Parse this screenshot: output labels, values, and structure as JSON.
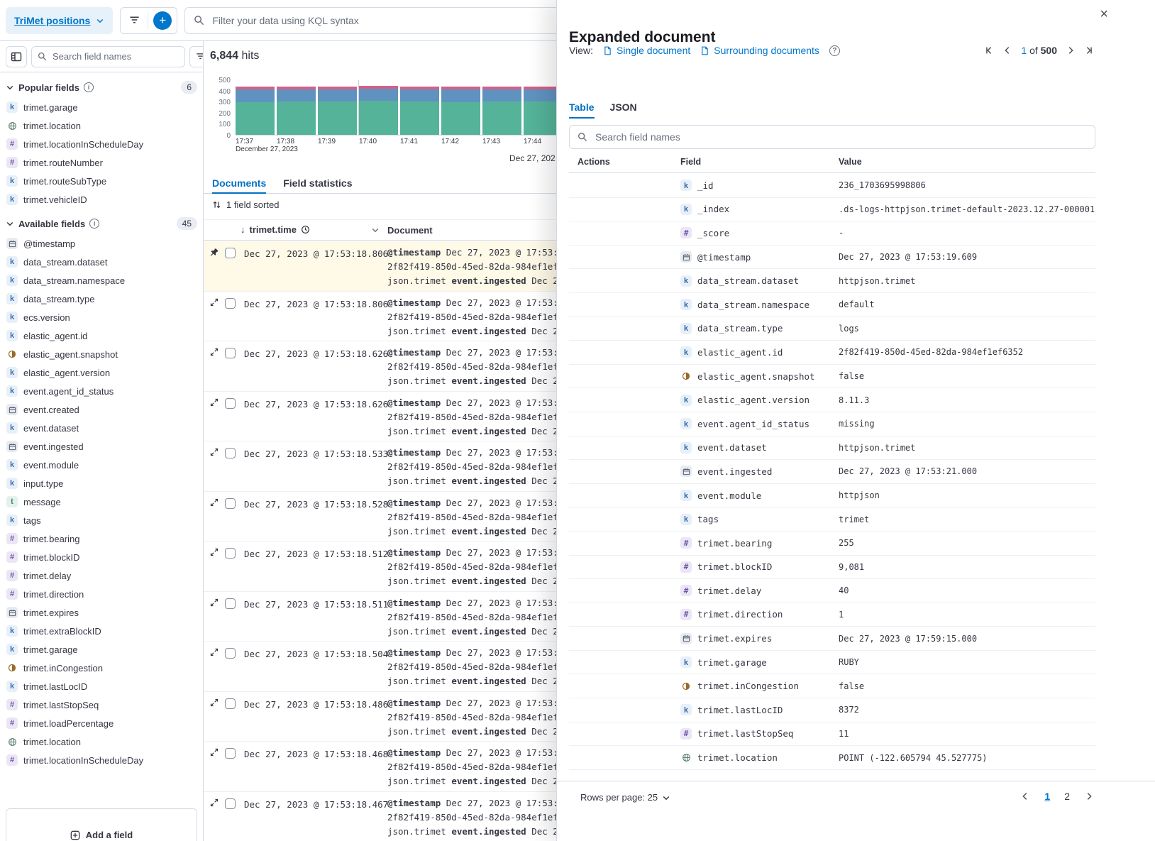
{
  "icons": {
    "close": "×",
    "plus": "+",
    "sort_desc_arrow": "↓",
    "question": "?",
    "info": "i"
  },
  "topbar": {
    "data_view": "TriMet positions",
    "kql_placeholder": "Filter your data using KQL syntax"
  },
  "sidebar": {
    "search_placeholder": "Search field names",
    "filter_count": "0",
    "add_field_label": "Add a field",
    "popular": {
      "label": "Popular fields",
      "count": "6",
      "items": [
        {
          "icon": "keyword",
          "name": "trimet.garage"
        },
        {
          "icon": "geo",
          "name": "trimet.location"
        },
        {
          "icon": "number",
          "name": "trimet.locationInScheduleDay"
        },
        {
          "icon": "number",
          "name": "trimet.routeNumber"
        },
        {
          "icon": "keyword",
          "name": "trimet.routeSubType"
        },
        {
          "icon": "keyword",
          "name": "trimet.vehicleID"
        }
      ]
    },
    "available": {
      "label": "Available fields",
      "count": "45",
      "items": [
        {
          "icon": "date",
          "name": "@timestamp"
        },
        {
          "icon": "keyword",
          "name": "data_stream.dataset"
        },
        {
          "icon": "keyword",
          "name": "data_stream.namespace"
        },
        {
          "icon": "keyword",
          "name": "data_stream.type"
        },
        {
          "icon": "keyword",
          "name": "ecs.version"
        },
        {
          "icon": "keyword",
          "name": "elastic_agent.id"
        },
        {
          "icon": "boolean",
          "name": "elastic_agent.snapshot"
        },
        {
          "icon": "keyword",
          "name": "elastic_agent.version"
        },
        {
          "icon": "keyword",
          "name": "event.agent_id_status"
        },
        {
          "icon": "date",
          "name": "event.created"
        },
        {
          "icon": "keyword",
          "name": "event.dataset"
        },
        {
          "icon": "date",
          "name": "event.ingested"
        },
        {
          "icon": "keyword",
          "name": "event.module"
        },
        {
          "icon": "keyword",
          "name": "input.type"
        },
        {
          "icon": "text",
          "name": "message"
        },
        {
          "icon": "keyword",
          "name": "tags"
        },
        {
          "icon": "number",
          "name": "trimet.bearing"
        },
        {
          "icon": "number",
          "name": "trimet.blockID"
        },
        {
          "icon": "number",
          "name": "trimet.delay"
        },
        {
          "icon": "number",
          "name": "trimet.direction"
        },
        {
          "icon": "date",
          "name": "trimet.expires"
        },
        {
          "icon": "keyword",
          "name": "trimet.extraBlockID"
        },
        {
          "icon": "keyword",
          "name": "trimet.garage"
        },
        {
          "icon": "boolean",
          "name": "trimet.inCongestion"
        },
        {
          "icon": "keyword",
          "name": "trimet.lastLocID"
        },
        {
          "icon": "number",
          "name": "trimet.lastStopSeq"
        },
        {
          "icon": "number",
          "name": "trimet.loadPercentage"
        },
        {
          "icon": "geo",
          "name": "trimet.location"
        },
        {
          "icon": "number",
          "name": "trimet.locationInScheduleDay"
        }
      ]
    }
  },
  "main": {
    "hits_count": "6,844",
    "hits_label": "hits",
    "tabs": [
      {
        "label": "Documents"
      },
      {
        "label": "Field statistics"
      }
    ],
    "sorted_label": "1 field sorted",
    "range_label": "Dec 27, 202",
    "table": {
      "time_column": "trimet.time",
      "doc_column": "Document",
      "preview": {
        "lines": [
          [
            {
              "b": "@timestamp"
            },
            {
              "t": " Dec 27, 2023 @ 17:53:19"
            }
          ],
          [
            {
              "t": "2f82f419-850d-45ed-82da-984ef1ef6"
            }
          ],
          [
            {
              "t": "json.trimet "
            },
            {
              "b": "event.ingested"
            },
            {
              "t": " Dec 27,"
            }
          ]
        ]
      },
      "rows": [
        "Dec 27, 2023 @ 17:53:18.806",
        "Dec 27, 2023 @ 17:53:18.806",
        "Dec 27, 2023 @ 17:53:18.626",
        "Dec 27, 2023 @ 17:53:18.626",
        "Dec 27, 2023 @ 17:53:18.533",
        "Dec 27, 2023 @ 17:53:18.528",
        "Dec 27, 2023 @ 17:53:18.512",
        "Dec 27, 2023 @ 17:53:18.511",
        "Dec 27, 2023 @ 17:53:18.504",
        "Dec 27, 2023 @ 17:53:18.486",
        "Dec 27, 2023 @ 17:53:18.468",
        "Dec 27, 2023 @ 17:53:18.467"
      ]
    }
  },
  "chart_data": {
    "type": "bar",
    "stacked": true,
    "title": "",
    "xlabel": "",
    "ylabel": "",
    "x": [
      "17:37",
      "17:38",
      "17:39",
      "17:40",
      "17:41",
      "17:42",
      "17:43",
      "17:44"
    ],
    "x_date_label": "December 27, 2023",
    "series": [
      {
        "name": "count-bottom",
        "color": "#54b399",
        "values": [
          295,
          300,
          300,
          305,
          300,
          298,
          300,
          300
        ]
      },
      {
        "name": "count-middle",
        "color": "#6092c0",
        "values": [
          115,
          112,
          110,
          112,
          112,
          110,
          112,
          110
        ]
      },
      {
        "name": "count-top",
        "color": "#d36086",
        "values": [
          25,
          25,
          24,
          25,
          25,
          25,
          25,
          25
        ]
      }
    ],
    "ylim": [
      0,
      500
    ],
    "yticks": [
      0,
      100,
      200,
      300,
      400,
      500
    ],
    "legend": false,
    "grid": false
  },
  "flyout": {
    "title": "Expanded document",
    "view_label": "View:",
    "view_links": [
      "Single document",
      "Surrounding documents"
    ],
    "pagination": {
      "current": "1",
      "of_label": "of",
      "total": "500"
    },
    "tabs": [
      "Table",
      "JSON"
    ],
    "search_placeholder": "Search field names",
    "columns": [
      "Actions",
      "Field",
      "Value"
    ],
    "rows": [
      {
        "icon": "keyword",
        "field": "_id",
        "value": "236_1703695998806"
      },
      {
        "icon": "keyword",
        "field": "_index",
        "value": ".ds-logs-httpjson.trimet-default-2023.12.27-000001"
      },
      {
        "icon": "number",
        "field": "_score",
        "value": "-"
      },
      {
        "icon": "date",
        "field": "@timestamp",
        "value": "Dec 27, 2023 @ 17:53:19.609"
      },
      {
        "icon": "keyword",
        "field": "data_stream.dataset",
        "value": "httpjson.trimet"
      },
      {
        "icon": "keyword",
        "field": "data_stream.namespace",
        "value": "default"
      },
      {
        "icon": "keyword",
        "field": "data_stream.type",
        "value": "logs"
      },
      {
        "icon": "keyword",
        "field": "elastic_agent.id",
        "value": "2f82f419-850d-45ed-82da-984ef1ef6352"
      },
      {
        "icon": "boolean",
        "field": "elastic_agent.snapshot",
        "value": "false"
      },
      {
        "icon": "keyword",
        "field": "elastic_agent.version",
        "value": "8.11.3"
      },
      {
        "icon": "keyword",
        "field": "event.agent_id_status",
        "value": "missing"
      },
      {
        "icon": "keyword",
        "field": "event.dataset",
        "value": "httpjson.trimet"
      },
      {
        "icon": "date",
        "field": "event.ingested",
        "value": "Dec 27, 2023 @ 17:53:21.000"
      },
      {
        "icon": "keyword",
        "field": "event.module",
        "value": "httpjson"
      },
      {
        "icon": "keyword",
        "field": "tags",
        "value": "trimet"
      },
      {
        "icon": "number",
        "field": "trimet.bearing",
        "value": "255"
      },
      {
        "icon": "number",
        "field": "trimet.blockID",
        "value": "9,081"
      },
      {
        "icon": "number",
        "field": "trimet.delay",
        "value": "40"
      },
      {
        "icon": "number",
        "field": "trimet.direction",
        "value": "1"
      },
      {
        "icon": "date",
        "field": "trimet.expires",
        "value": "Dec 27, 2023 @ 17:59:15.000"
      },
      {
        "icon": "keyword",
        "field": "trimet.garage",
        "value": "RUBY"
      },
      {
        "icon": "boolean",
        "field": "trimet.inCongestion",
        "value": "false"
      },
      {
        "icon": "keyword",
        "field": "trimet.lastLocID",
        "value": "8372"
      },
      {
        "icon": "number",
        "field": "trimet.lastStopSeq",
        "value": "11"
      },
      {
        "icon": "geo",
        "field": "trimet.location",
        "value": "POINT (-122.605794 45.527775)"
      }
    ],
    "footer": {
      "rows_per_page_label": "Rows per page: 25",
      "pages": [
        "1",
        "2"
      ],
      "active_page": "1"
    }
  }
}
